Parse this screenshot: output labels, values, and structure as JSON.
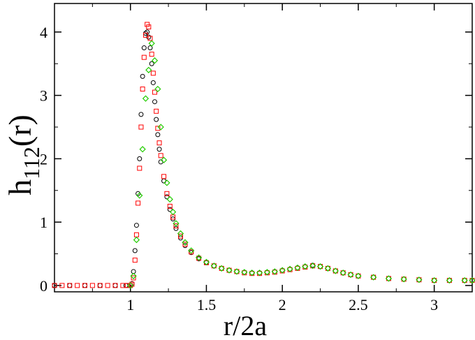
{
  "chart_data": {
    "type": "scatter",
    "title": "",
    "xlabel": "r/2a",
    "ylabel": {
      "main": "h",
      "sub": "112",
      "suffix": "(r)"
    },
    "xlim": [
      0.5,
      3.25
    ],
    "ylim": [
      -0.1,
      4.45
    ],
    "xticks": [
      1,
      1.5,
      2,
      2.5,
      3
    ],
    "xtick_labels": [
      "1",
      "1.5",
      "2",
      "2.5",
      "3"
    ],
    "yticks": [
      0,
      1,
      2,
      3,
      4
    ],
    "ytick_labels": [
      "0",
      "1",
      "2",
      "3",
      "4"
    ],
    "grid": false,
    "legend": "none",
    "series": [
      {
        "marker": "circle",
        "color": "#000000",
        "x": [
          0.5,
          0.6,
          0.7,
          0.8,
          0.9,
          0.97,
          1.0,
          1.01,
          1.02,
          1.03,
          1.04,
          1.05,
          1.06,
          1.07,
          1.08,
          1.09,
          1.1,
          1.11,
          1.12,
          1.13,
          1.14,
          1.15,
          1.16,
          1.17,
          1.18,
          1.19,
          1.2,
          1.22,
          1.24,
          1.26,
          1.28,
          1.3,
          1.33,
          1.36,
          1.4,
          1.45,
          1.5,
          1.55,
          1.6,
          1.65,
          1.7,
          1.75,
          1.8,
          1.85,
          1.9,
          1.95,
          2.0,
          2.05,
          2.1,
          2.15,
          2.2,
          2.25,
          2.3,
          2.35,
          2.4,
          2.45,
          2.5,
          2.6,
          2.7,
          2.8,
          2.9,
          3.0,
          3.1,
          3.2,
          3.25
        ],
        "y": [
          0,
          0,
          0,
          0,
          0,
          0,
          0,
          0.03,
          0.22,
          0.55,
          0.95,
          1.45,
          2.0,
          2.7,
          3.3,
          3.75,
          3.98,
          4.0,
          3.92,
          3.75,
          3.5,
          3.2,
          2.9,
          2.62,
          2.38,
          2.15,
          1.95,
          1.65,
          1.4,
          1.2,
          1.05,
          0.9,
          0.75,
          0.63,
          0.52,
          0.42,
          0.36,
          0.31,
          0.27,
          0.24,
          0.22,
          0.21,
          0.2,
          0.2,
          0.21,
          0.22,
          0.24,
          0.26,
          0.28,
          0.3,
          0.32,
          0.3,
          0.27,
          0.23,
          0.2,
          0.17,
          0.15,
          0.13,
          0.11,
          0.1,
          0.09,
          0.08,
          0.08,
          0.08,
          0.08
        ]
      },
      {
        "marker": "square",
        "color": "#ff0000",
        "x": [
          0.5,
          0.55,
          0.6,
          0.65,
          0.7,
          0.75,
          0.8,
          0.85,
          0.9,
          0.95,
          0.98,
          1.0,
          1.01,
          1.02,
          1.03,
          1.04,
          1.05,
          1.06,
          1.07,
          1.08,
          1.09,
          1.1,
          1.11,
          1.12,
          1.13,
          1.14,
          1.15,
          1.16,
          1.17,
          1.18,
          1.19,
          1.2,
          1.22,
          1.24,
          1.26,
          1.28,
          1.3,
          1.33,
          1.36,
          1.4,
          1.45,
          1.5,
          1.55,
          1.6,
          1.65,
          1.7,
          1.75,
          1.8,
          1.85,
          1.9,
          1.95,
          2.0,
          2.05,
          2.1,
          2.15,
          2.2,
          2.25,
          2.3,
          2.35,
          2.4,
          2.45,
          2.5,
          2.6,
          2.7,
          2.8,
          2.9,
          3.0,
          3.1,
          3.2,
          3.25
        ],
        "y": [
          0,
          0,
          0,
          0,
          0,
          0,
          0,
          0,
          0,
          0,
          0,
          0,
          0.02,
          0.12,
          0.4,
          0.8,
          1.3,
          1.85,
          2.5,
          3.1,
          3.6,
          3.95,
          4.12,
          4.08,
          3.9,
          3.65,
          3.35,
          3.05,
          2.75,
          2.48,
          2.25,
          2.05,
          1.72,
          1.45,
          1.25,
          1.08,
          0.94,
          0.78,
          0.65,
          0.53,
          0.43,
          0.36,
          0.31,
          0.27,
          0.24,
          0.22,
          0.2,
          0.19,
          0.19,
          0.2,
          0.21,
          0.23,
          0.25,
          0.27,
          0.29,
          0.31,
          0.3,
          0.27,
          0.23,
          0.2,
          0.17,
          0.15,
          0.13,
          0.11,
          0.1,
          0.09,
          0.08,
          0.08,
          0.08,
          0.08
        ]
      },
      {
        "marker": "diamond",
        "color": "#22cc00",
        "x": [
          1.0,
          1.02,
          1.04,
          1.06,
          1.08,
          1.1,
          1.12,
          1.14,
          1.16,
          1.18,
          1.2,
          1.22,
          1.24,
          1.26,
          1.28,
          1.3,
          1.33,
          1.36,
          1.4,
          1.45,
          1.5,
          1.55,
          1.6,
          1.65,
          1.7,
          1.75,
          1.8,
          1.85,
          1.9,
          1.95,
          2.0,
          2.05,
          2.1,
          2.15,
          2.2,
          2.25,
          2.3,
          2.35,
          2.4,
          2.45,
          2.5,
          2.6,
          2.7,
          2.8,
          2.9,
          3.0,
          3.1,
          3.2,
          3.25
        ],
        "y": [
          0,
          0.15,
          0.72,
          1.42,
          2.15,
          2.95,
          3.4,
          3.82,
          3.55,
          3.1,
          2.5,
          1.98,
          1.62,
          1.36,
          1.16,
          0.98,
          0.82,
          0.68,
          0.55,
          0.44,
          0.37,
          0.31,
          0.27,
          0.24,
          0.22,
          0.21,
          0.2,
          0.2,
          0.21,
          0.22,
          0.24,
          0.26,
          0.28,
          0.3,
          0.31,
          0.3,
          0.27,
          0.23,
          0.2,
          0.17,
          0.15,
          0.13,
          0.11,
          0.1,
          0.09,
          0.08,
          0.08,
          0.08,
          0.08
        ]
      }
    ]
  }
}
